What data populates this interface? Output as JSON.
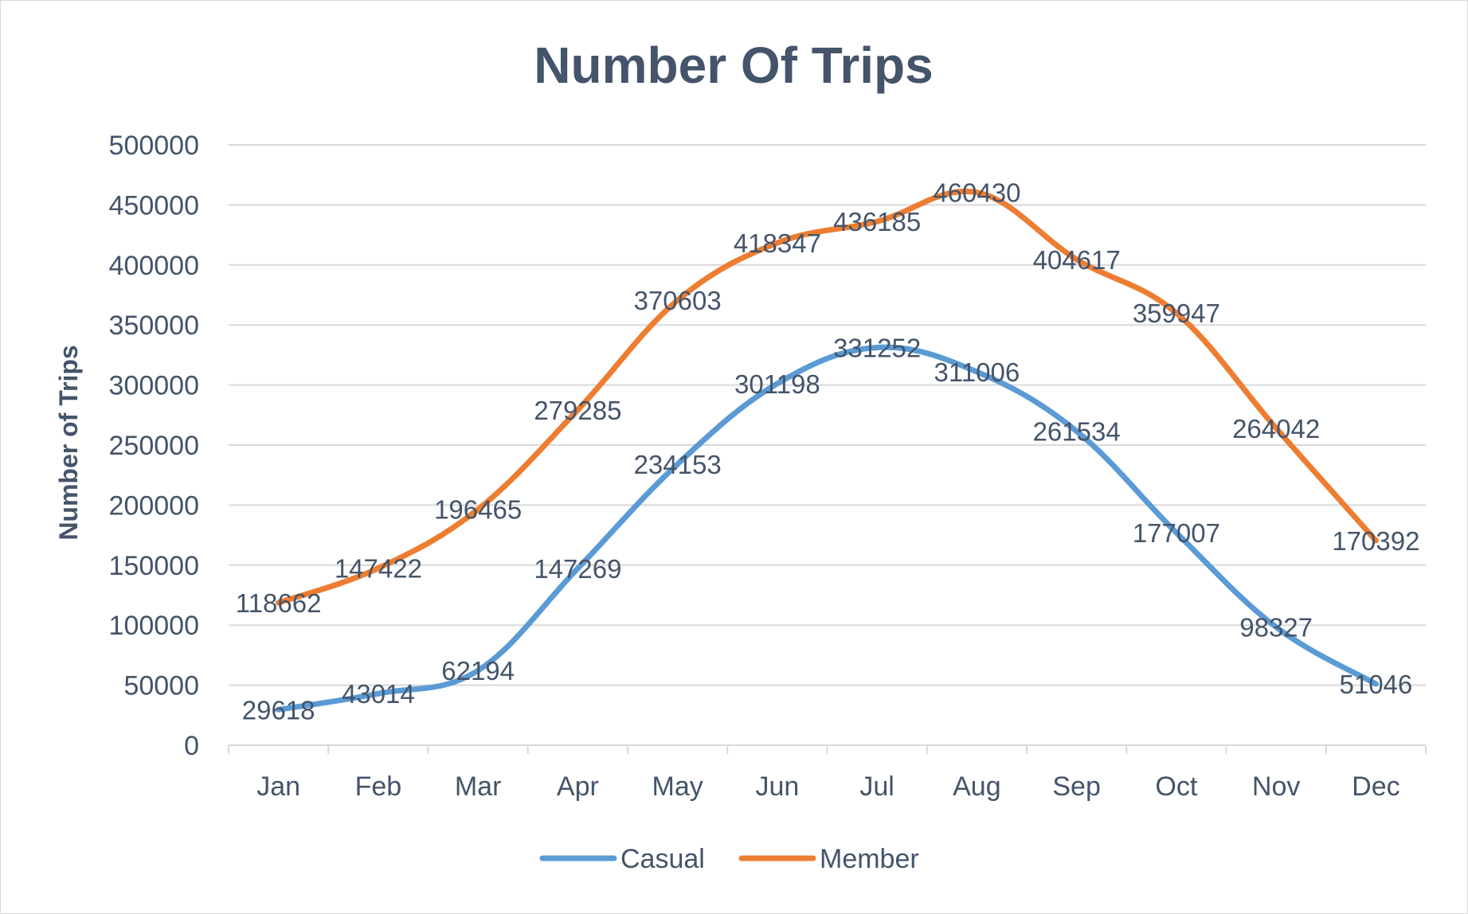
{
  "chart_data": {
    "type": "line",
    "title": "Number Of Trips",
    "xlabel": "",
    "ylabel": "Number of Trips",
    "categories": [
      "Jan",
      "Feb",
      "Mar",
      "Apr",
      "May",
      "Jun",
      "Jul",
      "Aug",
      "Sep",
      "Oct",
      "Nov",
      "Dec"
    ],
    "ylim": [
      0,
      500000
    ],
    "yticks": [
      0,
      50000,
      100000,
      150000,
      200000,
      250000,
      300000,
      350000,
      400000,
      450000,
      500000
    ],
    "ytick_labels": [
      "0",
      "50000",
      "100000",
      "150000",
      "200000",
      "250000",
      "300000",
      "350000",
      "400000",
      "450000",
      "500000"
    ],
    "grid": true,
    "legend_position": "bottom",
    "series": [
      {
        "name": "Casual",
        "color": "#5b9bd5",
        "values": [
          29618,
          43014,
          62194,
          147269,
          234153,
          301198,
          331252,
          311006,
          261534,
          177007,
          98327,
          51046
        ],
        "labels": [
          "29618",
          "43014",
          "62194",
          "147269",
          "234153",
          "301198",
          "331252",
          "311006",
          "261534",
          "177007",
          "98327",
          "51046"
        ]
      },
      {
        "name": "Member",
        "color": "#ed7d31",
        "values": [
          118662,
          147422,
          196465,
          279285,
          370603,
          418347,
          436185,
          460430,
          404617,
          359947,
          264042,
          170392
        ],
        "labels": [
          "118662",
          "147422",
          "196465",
          "279285",
          "370603",
          "418347",
          "436185",
          "460430",
          "404617",
          "359947",
          "264042",
          "170392"
        ]
      }
    ]
  }
}
